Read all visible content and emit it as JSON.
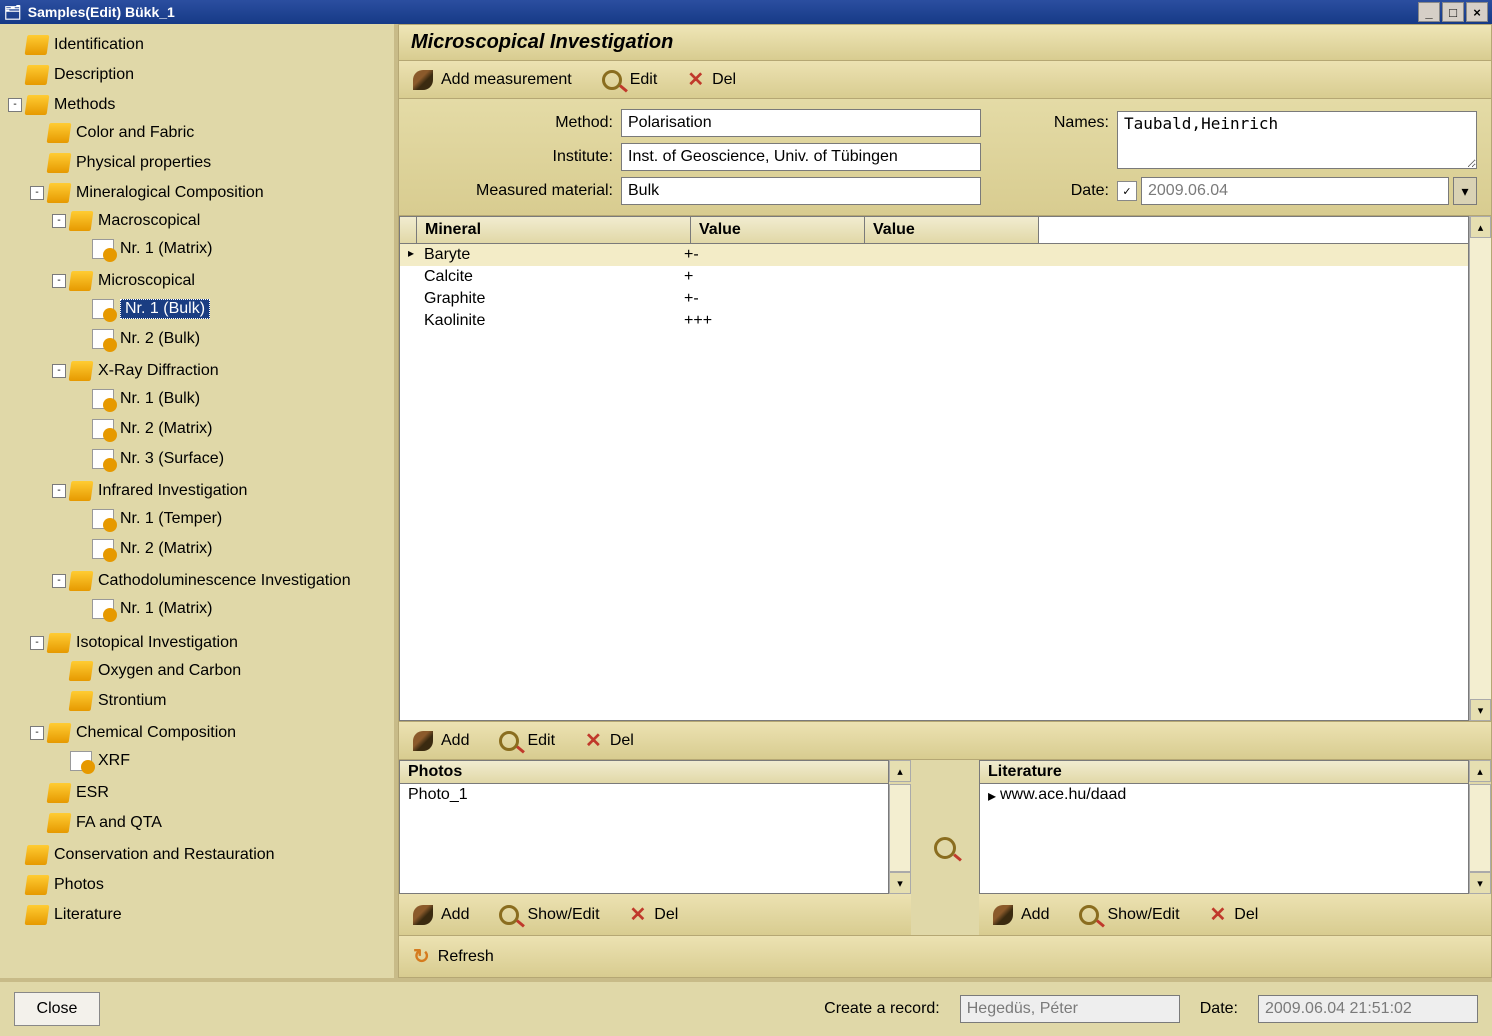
{
  "window": {
    "title": "Samples(Edit)  Bükk_1"
  },
  "tree": [
    {
      "label": "Identification",
      "icon": "folder",
      "exp": null
    },
    {
      "label": "Description",
      "icon": "folder",
      "exp": null
    },
    {
      "label": "Methods",
      "icon": "folder",
      "exp": "-",
      "children": [
        {
          "label": "Color and Fabric",
          "icon": "folder",
          "exp": null
        },
        {
          "label": "Physical properties",
          "icon": "folder",
          "exp": null
        },
        {
          "label": "Mineralogical Composition",
          "icon": "folder",
          "exp": "-",
          "children": [
            {
              "label": "Macroscopical",
              "icon": "folder",
              "exp": "-",
              "children": [
                {
                  "label": "Nr. 1 (Matrix)",
                  "icon": "doc",
                  "exp": null
                }
              ]
            },
            {
              "label": "Microscopical",
              "icon": "folder",
              "exp": "-",
              "children": [
                {
                  "label": "Nr. 1 (Bulk)",
                  "icon": "doc",
                  "exp": null,
                  "selected": true
                },
                {
                  "label": "Nr. 2 (Bulk)",
                  "icon": "doc",
                  "exp": null
                }
              ]
            },
            {
              "label": "X-Ray Diffraction",
              "icon": "folder",
              "exp": "-",
              "children": [
                {
                  "label": "Nr. 1 (Bulk)",
                  "icon": "doc",
                  "exp": null
                },
                {
                  "label": "Nr. 2 (Matrix)",
                  "icon": "doc",
                  "exp": null
                },
                {
                  "label": "Nr. 3 (Surface)",
                  "icon": "doc",
                  "exp": null
                }
              ]
            },
            {
              "label": "Infrared Investigation",
              "icon": "folder",
              "exp": "-",
              "children": [
                {
                  "label": "Nr. 1 (Temper)",
                  "icon": "doc",
                  "exp": null
                },
                {
                  "label": "Nr. 2 (Matrix)",
                  "icon": "doc",
                  "exp": null
                }
              ]
            },
            {
              "label": "Cathodoluminescence Investigation",
              "icon": "folder",
              "exp": "-",
              "children": [
                {
                  "label": "Nr. 1 (Matrix)",
                  "icon": "doc",
                  "exp": null
                }
              ]
            }
          ]
        },
        {
          "label": "Isotopical Investigation",
          "icon": "folder",
          "exp": "-",
          "children": [
            {
              "label": "Oxygen and Carbon",
              "icon": "folder",
              "exp": null
            },
            {
              "label": "Strontium",
              "icon": "folder",
              "exp": null
            }
          ]
        },
        {
          "label": "Chemical Composition",
          "icon": "folder",
          "exp": "-",
          "children": [
            {
              "label": "XRF",
              "icon": "doc",
              "exp": null
            }
          ]
        },
        {
          "label": "ESR",
          "icon": "folder",
          "exp": null
        },
        {
          "label": "FA and QTA",
          "icon": "folder",
          "exp": null
        }
      ]
    },
    {
      "label": "Conservation and Restauration",
      "icon": "folder",
      "exp": null
    },
    {
      "label": "Photos",
      "icon": "folder",
      "exp": null
    },
    {
      "label": "Literature",
      "icon": "folder",
      "exp": null
    }
  ],
  "panel": {
    "title": "Microscopical Investigation",
    "toolbar": {
      "add_measurement": "Add measurement",
      "edit": "Edit",
      "del": "Del"
    },
    "form": {
      "method_label": "Method:",
      "method_value": "Polarisation",
      "institute_label": "Institute:",
      "institute_value": "Inst. of Geoscience, Univ. of Tübingen",
      "material_label": "Measured material:",
      "material_value": "Bulk",
      "names_label": "Names:",
      "names_value": "Taubald,Heinrich",
      "date_label": "Date:",
      "date_value": "2009.06.04"
    },
    "grid": {
      "columns": [
        "Mineral",
        "Value",
        "Value"
      ],
      "rows": [
        {
          "mineral": "Baryte",
          "v1": "+-",
          "v2": "",
          "hl": true,
          "cursor": true
        },
        {
          "mineral": "Calcite",
          "v1": "+",
          "v2": ""
        },
        {
          "mineral": "Graphite",
          "v1": "+-",
          "v2": ""
        },
        {
          "mineral": "Kaolinite",
          "v1": "+++",
          "v2": ""
        }
      ],
      "toolbar": {
        "add": "Add",
        "edit": "Edit",
        "del": "Del"
      }
    },
    "photos": {
      "title": "Photos",
      "items": [
        "Photo_1"
      ],
      "toolbar": {
        "add": "Add",
        "showedit": "Show/Edit",
        "del": "Del"
      }
    },
    "literature": {
      "title": "Literature",
      "items": [
        "www.ace.hu/daad"
      ],
      "toolbar": {
        "add": "Add",
        "showedit": "Show/Edit",
        "del": "Del"
      }
    },
    "refresh": "Refresh"
  },
  "footer": {
    "close": "Close",
    "create_label": "Create a record:",
    "create_value": "Hegedüs, Péter",
    "date_label": "Date:",
    "date_value": "2009.06.04 21:51:02"
  },
  "style": {
    "titlebar_bg": "#1a3d82",
    "panel_bg": "#e0d8a8",
    "panel_border": "#b5a774",
    "selected_bg": "#1a3d82",
    "selected_fg": "#ffffff",
    "accent_orange": "#e69900",
    "grid_hl": "#f3ecc7",
    "font_body": 16,
    "font_title": 20
  }
}
